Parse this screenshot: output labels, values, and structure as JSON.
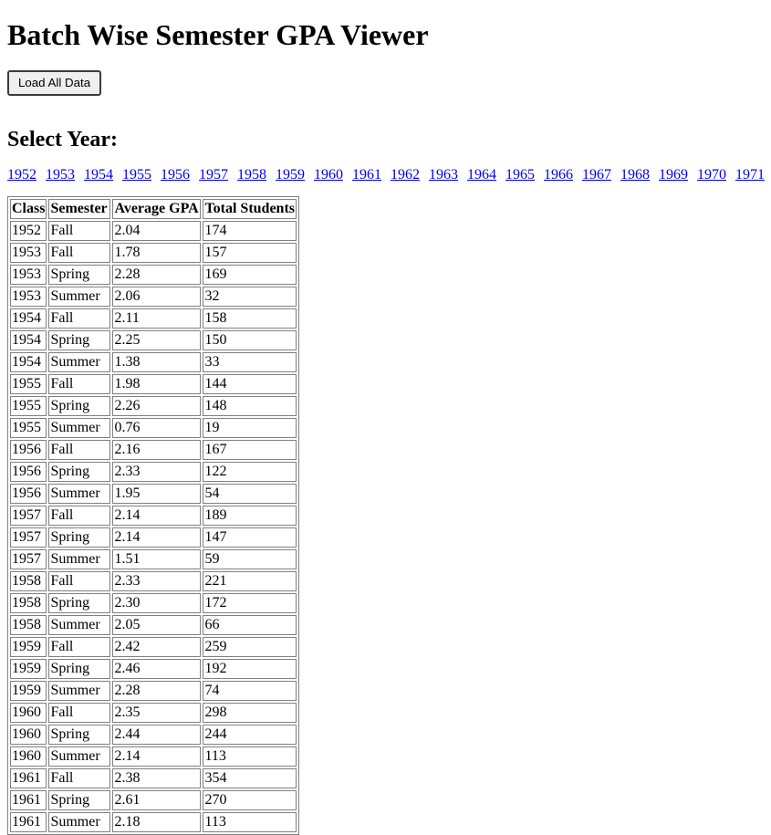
{
  "title": "Batch Wise Semester GPA Viewer",
  "load_button_label": "Load All Data",
  "select_year_heading": "Select Year:",
  "years": [
    "1952",
    "1953",
    "1954",
    "1955",
    "1956",
    "1957",
    "1958",
    "1959",
    "1960",
    "1961",
    "1962",
    "1963",
    "1964",
    "1965",
    "1966",
    "1967",
    "1968",
    "1969",
    "1970",
    "1971"
  ],
  "table": {
    "headers": [
      "Class",
      "Semester",
      "Average GPA",
      "Total Students"
    ],
    "rows": [
      [
        "1952",
        "Fall",
        "2.04",
        "174"
      ],
      [
        "1953",
        "Fall",
        "1.78",
        "157"
      ],
      [
        "1953",
        "Spring",
        "2.28",
        "169"
      ],
      [
        "1953",
        "Summer",
        "2.06",
        "32"
      ],
      [
        "1954",
        "Fall",
        "2.11",
        "158"
      ],
      [
        "1954",
        "Spring",
        "2.25",
        "150"
      ],
      [
        "1954",
        "Summer",
        "1.38",
        "33"
      ],
      [
        "1955",
        "Fall",
        "1.98",
        "144"
      ],
      [
        "1955",
        "Spring",
        "2.26",
        "148"
      ],
      [
        "1955",
        "Summer",
        "0.76",
        "19"
      ],
      [
        "1956",
        "Fall",
        "2.16",
        "167"
      ],
      [
        "1956",
        "Spring",
        "2.33",
        "122"
      ],
      [
        "1956",
        "Summer",
        "1.95",
        "54"
      ],
      [
        "1957",
        "Fall",
        "2.14",
        "189"
      ],
      [
        "1957",
        "Spring",
        "2.14",
        "147"
      ],
      [
        "1957",
        "Summer",
        "1.51",
        "59"
      ],
      [
        "1958",
        "Fall",
        "2.33",
        "221"
      ],
      [
        "1958",
        "Spring",
        "2.30",
        "172"
      ],
      [
        "1958",
        "Summer",
        "2.05",
        "66"
      ],
      [
        "1959",
        "Fall",
        "2.42",
        "259"
      ],
      [
        "1959",
        "Spring",
        "2.46",
        "192"
      ],
      [
        "1959",
        "Summer",
        "2.28",
        "74"
      ],
      [
        "1960",
        "Fall",
        "2.35",
        "298"
      ],
      [
        "1960",
        "Spring",
        "2.44",
        "244"
      ],
      [
        "1960",
        "Summer",
        "2.14",
        "113"
      ],
      [
        "1961",
        "Fall",
        "2.38",
        "354"
      ],
      [
        "1961",
        "Spring",
        "2.61",
        "270"
      ],
      [
        "1961",
        "Summer",
        "2.18",
        "113"
      ]
    ]
  }
}
